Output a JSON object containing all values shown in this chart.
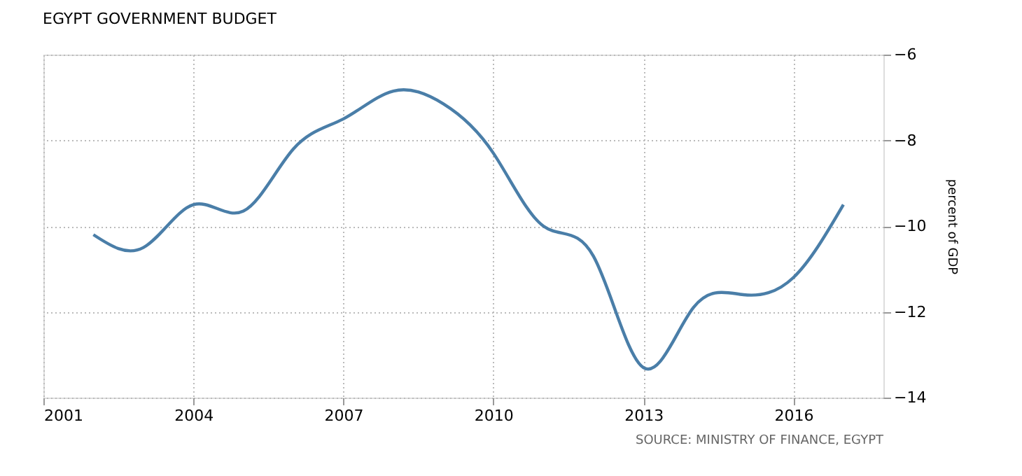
{
  "chart_data": {
    "type": "line",
    "title": "EGYPT GOVERNMENT BUDGET",
    "ylabel": "percent of GDP",
    "x": [
      2002,
      2003,
      2004,
      2005,
      2006,
      2007,
      2008,
      2009,
      2010,
      2011,
      2012,
      2013,
      2014,
      2015,
      2016,
      2017
    ],
    "series": [
      {
        "color": "#4a7ea8",
        "values": [
          -10.2,
          -10.5,
          -9.5,
          -9.65,
          -8.2,
          -7.5,
          -6.85,
          -7.15,
          -8.3,
          -10.0,
          -10.7,
          -13.3,
          -11.9,
          -11.6,
          -11.2,
          -9.5
        ]
      }
    ],
    "xlim": [
      2001,
      2017.8
    ],
    "xticks": [
      2001,
      2004,
      2007,
      2010,
      2013,
      2016
    ],
    "ylim": [
      -14,
      -6
    ],
    "yticks": [
      -14,
      -12,
      -10,
      -8,
      -6
    ],
    "grid": true,
    "marker": "none",
    "line_style": "solid",
    "annotations": [
      "SOURCE: MINISTRY OF FINANCE, EGYPT"
    ]
  }
}
